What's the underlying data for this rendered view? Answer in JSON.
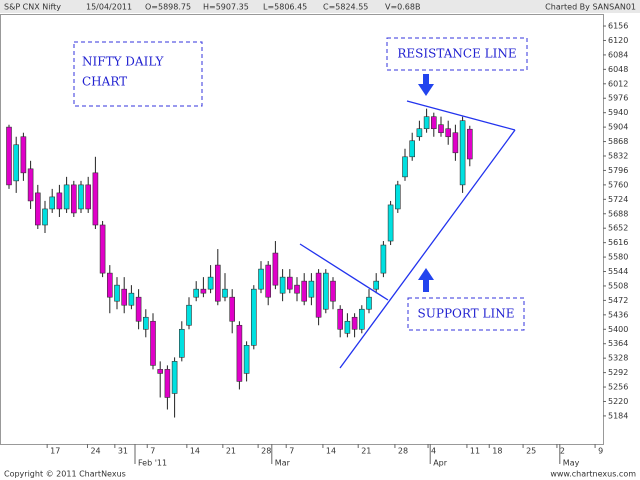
{
  "chart_data": {
    "type": "candlestick",
    "header": {
      "symbol": "S&P CNX Nifty",
      "date": "15/04/2011",
      "open": "O=5898.75",
      "high": "H=5907.35",
      "low": "L=5806.45",
      "close": "C=5824.55",
      "volume": "V=0.68B",
      "credit": "Charted By SANSAN01"
    },
    "footer": {
      "copyright": "Copyright © 2011 ChartNexus",
      "site": "www.chartnexus.com"
    },
    "annotations": {
      "title": [
        "NIFTY DAILY",
        "CHART"
      ],
      "resistance": "RESISTANCE LINE",
      "support": "SUPPORT LINE"
    },
    "up_color": "#00e0e0",
    "down_color": "#e000c8",
    "open": [
      5904,
      5770,
      5880,
      5800,
      5740,
      5660,
      5700,
      5740,
      5700,
      5760,
      5700,
      5760,
      5790,
      5660,
      5540,
      5470,
      5500,
      5460,
      5480,
      5400,
      5420,
      5300,
      5300,
      5240,
      5330,
      5410,
      5480,
      5500,
      5500,
      5560,
      5480,
      5480,
      5410,
      5290,
      5360,
      5500,
      5560,
      5590,
      5490,
      5530,
      5510,
      5520,
      5480,
      5540,
      5450,
      5520,
      5450,
      5390,
      5430,
      5400,
      5450,
      5500,
      5540,
      5620,
      5700,
      5780,
      5830,
      5880,
      5900,
      5930,
      5910,
      5900,
      5890,
      5760,
      5898.75
    ],
    "high": [
      5910,
      5880,
      5890,
      5820,
      5760,
      5720,
      5750,
      5760,
      5780,
      5770,
      5770,
      5780,
      5830,
      5670,
      5560,
      5530,
      5530,
      5510,
      5500,
      5450,
      5440,
      5320,
      5310,
      5330,
      5420,
      5480,
      5520,
      5530,
      5560,
      5600,
      5540,
      5500,
      5420,
      5370,
      5510,
      5570,
      5570,
      5620,
      5550,
      5550,
      5530,
      5540,
      5540,
      5550,
      5550,
      5530,
      5460,
      5440,
      5440,
      5460,
      5500,
      5540,
      5620,
      5720,
      5770,
      5850,
      5890,
      5920,
      5950,
      5940,
      5930,
      5920,
      5910,
      5930,
      5907.35
    ],
    "low": [
      5750,
      5740,
      5770,
      5700,
      5650,
      5640,
      5690,
      5680,
      5690,
      5680,
      5690,
      5690,
      5650,
      5530,
      5440,
      5450,
      5440,
      5450,
      5400,
      5380,
      5300,
      5230,
      5200,
      5180,
      5320,
      5400,
      5470,
      5480,
      5490,
      5460,
      5470,
      5390,
      5250,
      5270,
      5350,
      5490,
      5460,
      5500,
      5470,
      5490,
      5470,
      5460,
      5460,
      5410,
      5440,
      5450,
      5380,
      5380,
      5380,
      5390,
      5440,
      5490,
      5530,
      5610,
      5690,
      5770,
      5820,
      5870,
      5890,
      5880,
      5880,
      5860,
      5820,
      5740,
      5806.45
    ],
    "close": [
      5760,
      5860,
      5790,
      5720,
      5660,
      5700,
      5730,
      5700,
      5760,
      5690,
      5760,
      5700,
      5660,
      5540,
      5480,
      5510,
      5460,
      5490,
      5420,
      5430,
      5310,
      5290,
      5230,
      5320,
      5400,
      5460,
      5500,
      5490,
      5530,
      5470,
      5500,
      5420,
      5270,
      5360,
      5500,
      5550,
      5480,
      5510,
      5530,
      5500,
      5490,
      5470,
      5520,
      5430,
      5540,
      5470,
      5400,
      5420,
      5400,
      5450,
      5480,
      5520,
      5610,
      5710,
      5760,
      5830,
      5870,
      5900,
      5930,
      5900,
      5890,
      5880,
      5840,
      5920,
      5824.55
    ],
    "ylim": [
      5114,
      6186
    ],
    "yticks": [
      5184,
      5220,
      5256,
      5292,
      5328,
      5364,
      5400,
      5436,
      5472,
      5508,
      5544,
      5580,
      5616,
      5652,
      5688,
      5724,
      5760,
      5796,
      5832,
      5868,
      5904,
      5940,
      5976,
      6012,
      6048,
      6084,
      6120,
      6156
    ],
    "xlim": [
      -1.25,
      82.5
    ],
    "xticks": [
      {
        "value": 5.3,
        "label": "17"
      },
      {
        "value": 10.9,
        "label": "24"
      },
      {
        "value": 14.7,
        "label": "31"
      },
      {
        "value": 19.2,
        "label": "7"
      },
      {
        "value": 24.7,
        "label": "14"
      },
      {
        "value": 29.7,
        "label": "21"
      },
      {
        "value": 34.6,
        "label": "28"
      },
      {
        "value": 38.5,
        "label": "7"
      },
      {
        "value": 43.6,
        "label": "14"
      },
      {
        "value": 48.5,
        "label": "21"
      },
      {
        "value": 53.6,
        "label": "28"
      },
      {
        "value": 58.2,
        "label": "4"
      },
      {
        "value": 63.6,
        "label": "11"
      },
      {
        "value": 66.7,
        "label": "18"
      },
      {
        "value": 71.4,
        "label": "25"
      },
      {
        "value": 76.1,
        "label": "2"
      },
      {
        "value": 81.4,
        "label": "9"
      }
    ],
    "month_ticks": [
      {
        "value": 17.5,
        "label": "Feb '11"
      },
      {
        "value": 36.5,
        "label": "Mar"
      },
      {
        "value": 58.5,
        "label": "Apr"
      },
      {
        "value": 76.5,
        "label": "May"
      }
    ]
  }
}
